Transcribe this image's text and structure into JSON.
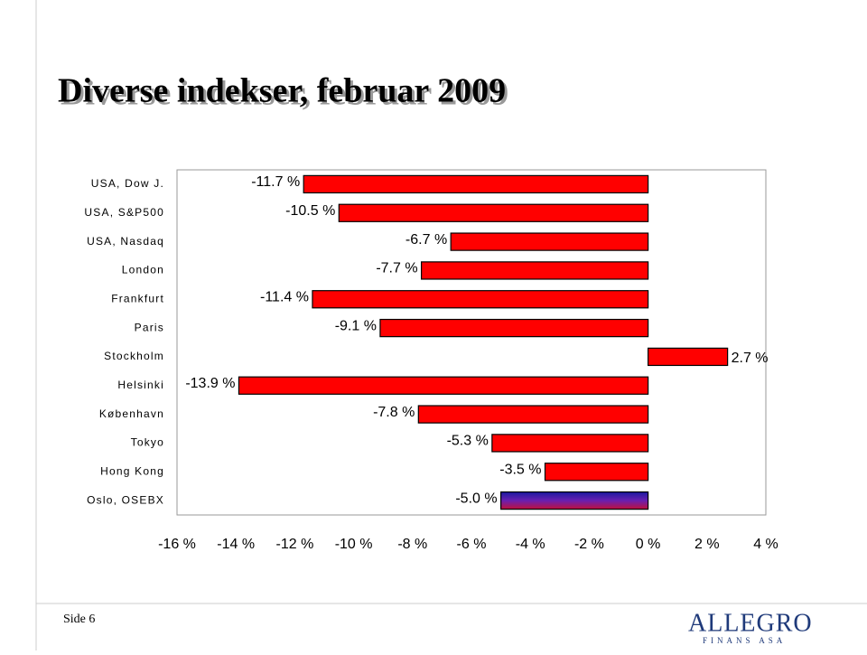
{
  "slide": {
    "title": "Diverse indekser, februar 2009",
    "footer": "Side 6",
    "logo": "ALLEGRO",
    "logo_sub": "FINANS ASA"
  },
  "chart_data": {
    "type": "hbar",
    "categories": [
      "USA, Dow J.",
      "USA, S&P500",
      "USA, Nasdaq",
      "London",
      "Frankfurt",
      "Paris",
      "Stockholm",
      "Helsinki",
      "København",
      "Tokyo",
      "Hong Kong",
      "Oslo, OSEBX"
    ],
    "values": [
      -11.7,
      -10.5,
      -6.7,
      -7.7,
      -11.4,
      -9.1,
      2.7,
      -13.9,
      -7.8,
      -5.3,
      -3.5,
      -5.0
    ],
    "value_labels": [
      "-11.7 %",
      "-10.5 %",
      "-6.7 %",
      "-7.7 %",
      "-11.4 %",
      "-9.1 %",
      "2.7 %",
      "-13.9 %",
      "-7.8 %",
      "-5.3 %",
      "-3.5 %",
      "-5.0 %"
    ],
    "colors": [
      "#ff0000",
      "#ff0000",
      "#ff0000",
      "#ff0000",
      "#ff0000",
      "#ff0000",
      "#ff0000",
      "#ff0000",
      "#ff0000",
      "#ff0000",
      "#ff0000",
      "#5b1fa8"
    ],
    "xlim": [
      -16,
      4
    ],
    "xticks": [
      {
        "value": -16,
        "label": "-16 %"
      },
      {
        "value": -14,
        "label": "-14 %"
      },
      {
        "value": -12,
        "label": "-12 %"
      },
      {
        "value": -10,
        "label": "-10 %"
      },
      {
        "value": -8,
        "label": "-8 %"
      },
      {
        "value": -6,
        "label": "-6 %"
      },
      {
        "value": -4,
        "label": "-4 %"
      },
      {
        "value": -2,
        "label": "-2 %"
      },
      {
        "value": 0,
        "label": "0 %"
      },
      {
        "value": 2,
        "label": "2 %"
      },
      {
        "value": 4,
        "label": "4 %"
      }
    ]
  }
}
